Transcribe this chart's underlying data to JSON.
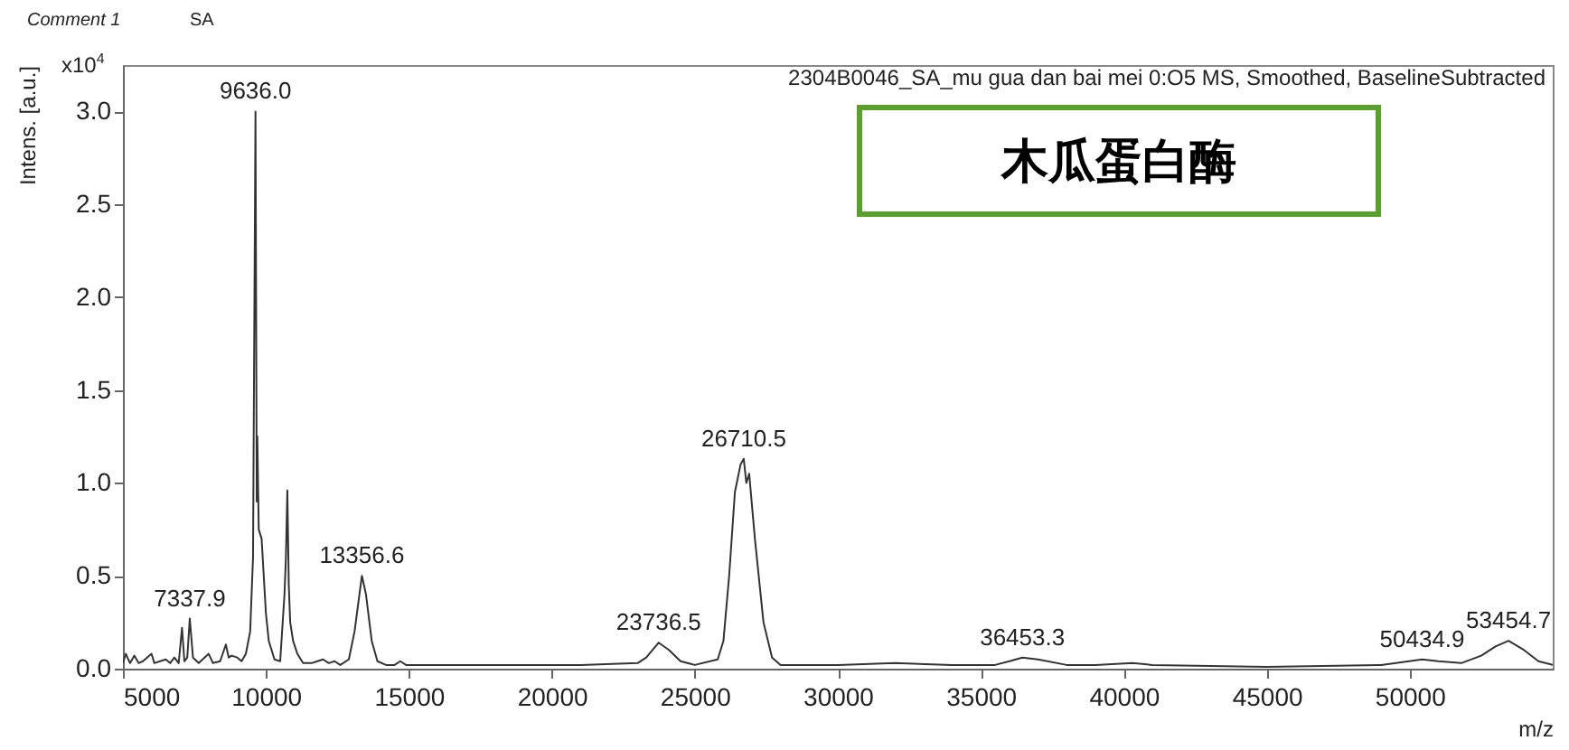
{
  "chart_data": {
    "type": "line",
    "title": "2304B0046_SA_mu gua dan bai mei 0:O5 MS, Smoothed, BaselineSubtracted",
    "xlabel": "m/z",
    "ylabel": "Intens. [a.u.]",
    "annotations": [
      "Comment 1",
      "SA",
      "x10$^{4}$",
      "木瓜蛋白酶",
      {
        "text": "7337.9",
        "x": 7337.9,
        "y": 0.27
      },
      {
        "text": "9636.0",
        "x": 9636.0,
        "y": 3.0
      },
      {
        "text": "13356.6",
        "x": 13356.6,
        "y": 0.5
      },
      {
        "text": "23736.5",
        "x": 23736.5,
        "y": 0.14
      },
      {
        "text": "26710.5",
        "x": 26710.5,
        "y": 1.13
      },
      {
        "text": "36453.3",
        "x": 36453.3,
        "y": 0.06
      },
      {
        "text": "50434.9",
        "x": 50434.9,
        "y": 0.05
      },
      {
        "text": "53454.7",
        "x": 53454.7,
        "y": 0.15
      }
    ],
    "series": [
      {
        "color": "#333333",
        "x": [
          5000,
          5100,
          5250,
          5400,
          5550,
          5700,
          6000,
          6100,
          6300,
          6500,
          6650,
          6800,
          6950,
          7067,
          7150,
          7250,
          7338,
          7450,
          7650,
          8000,
          8150,
          8400,
          8600,
          8700,
          8800,
          9000,
          9150,
          9300,
          9450,
          9550,
          9636,
          9680,
          9700,
          9750,
          9850,
          10000,
          10100,
          10300,
          10500,
          10650,
          10700,
          10750,
          10800,
          10850,
          10950,
          11100,
          11300,
          11600,
          11800,
          12000,
          12200,
          12400,
          12600,
          12900,
          13100,
          13357,
          13500,
          13700,
          13900,
          14200,
          14500,
          14700,
          14900,
          15000,
          17000,
          19000,
          21000,
          23000,
          23300,
          23737,
          24100,
          24500,
          25000,
          25800,
          26000,
          26200,
          26400,
          26600,
          26710,
          26800,
          26900,
          27100,
          27400,
          27700,
          28000,
          30000,
          32000,
          34000,
          35500,
          36000,
          36453,
          37000,
          38000,
          39000,
          40300,
          41000,
          45000,
          49000,
          50435,
          51000,
          51800,
          52500,
          53000,
          53455,
          54000,
          54500,
          55000
        ],
        "values": [
          0.03,
          0.08,
          0.03,
          0.07,
          0.03,
          0.04,
          0.08,
          0.03,
          0.04,
          0.05,
          0.03,
          0.06,
          0.03,
          0.22,
          0.04,
          0.06,
          0.27,
          0.06,
          0.03,
          0.08,
          0.03,
          0.04,
          0.13,
          0.06,
          0.07,
          0.06,
          0.04,
          0.08,
          0.2,
          0.6,
          3.0,
          0.9,
          1.25,
          0.75,
          0.7,
          0.3,
          0.15,
          0.05,
          0.04,
          0.4,
          0.6,
          0.96,
          0.45,
          0.25,
          0.15,
          0.08,
          0.03,
          0.03,
          0.04,
          0.05,
          0.03,
          0.04,
          0.02,
          0.05,
          0.2,
          0.5,
          0.4,
          0.15,
          0.04,
          0.02,
          0.02,
          0.04,
          0.02,
          0.02,
          0.02,
          0.02,
          0.02,
          0.03,
          0.06,
          0.14,
          0.1,
          0.04,
          0.02,
          0.05,
          0.15,
          0.5,
          0.95,
          1.1,
          1.13,
          1.0,
          1.05,
          0.7,
          0.25,
          0.06,
          0.02,
          0.02,
          0.03,
          0.02,
          0.02,
          0.04,
          0.06,
          0.05,
          0.02,
          0.02,
          0.03,
          0.02,
          0.01,
          0.02,
          0.05,
          0.04,
          0.03,
          0.07,
          0.12,
          0.15,
          0.1,
          0.04,
          0.02
        ]
      }
    ],
    "xlim": [
      5000,
      55000
    ],
    "xticks": [
      5000,
      10000,
      15000,
      20000,
      25000,
      30000,
      35000,
      40000,
      45000,
      50000
    ],
    "ylim": [
      0,
      3.25
    ],
    "yticks": [
      {
        "value": 0,
        "label": "0.0"
      },
      {
        "value": 0.5,
        "label": "0.5"
      },
      {
        "value": 1,
        "label": "1.0"
      },
      {
        "value": 1.5,
        "label": "1.5"
      },
      {
        "value": 2,
        "label": "2.0"
      },
      {
        "value": 2.5,
        "label": "2.5"
      },
      {
        "value": 3,
        "label": "3.0"
      }
    ],
    "grid": false,
    "line_style": "solid"
  }
}
